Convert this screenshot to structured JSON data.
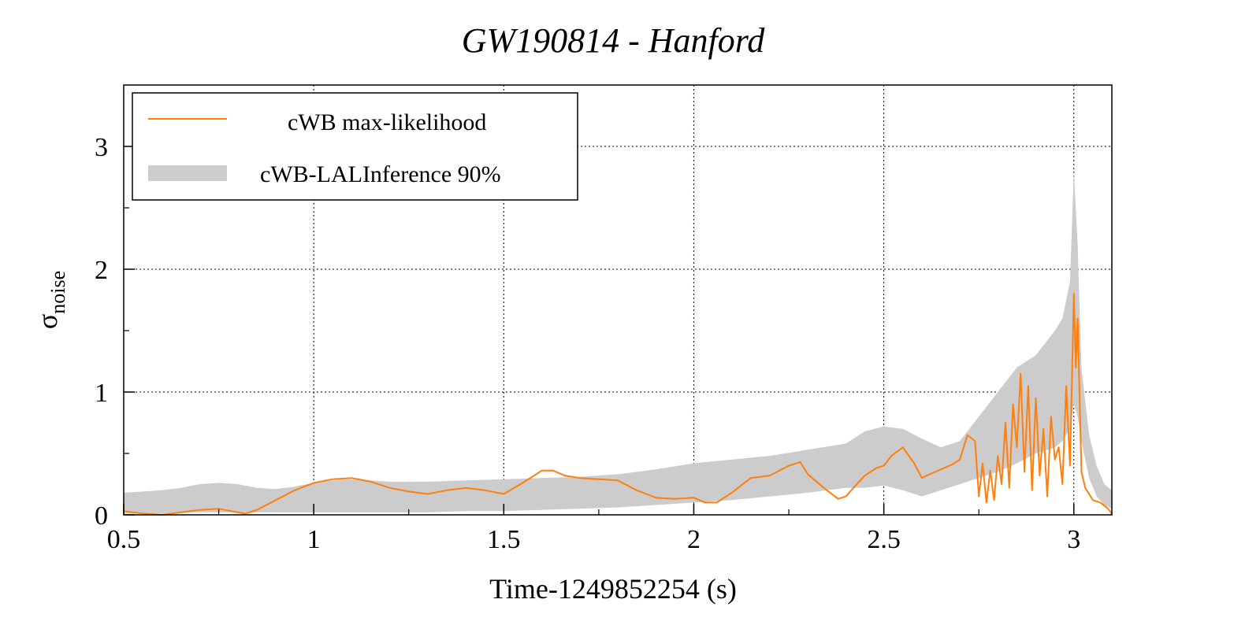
{
  "chart_data": {
    "type": "line",
    "title": "GW190814 - Hanford",
    "xlabel": "Time-1249852254 (s)",
    "ylabel_main": "σ",
    "ylabel_sub": "noise",
    "xlim": [
      0.5,
      3.1
    ],
    "ylim": [
      0,
      3.5
    ],
    "xticks": [
      0.5,
      1,
      1.5,
      2,
      2.5,
      3
    ],
    "xtick_labels": [
      "0.5",
      "1",
      "1.5",
      "2",
      "2.5",
      "3"
    ],
    "yticks": [
      0,
      1,
      2,
      3
    ],
    "ytick_labels": [
      "0",
      "1",
      "2",
      "3"
    ],
    "grid": true,
    "legend_position": "top-left",
    "colors": {
      "line": "#ff7f0e",
      "band": "#cccccc"
    },
    "series": [
      {
        "name": "cWB max-likelihood",
        "kind": "line",
        "x": [
          0.5,
          0.55,
          0.6,
          0.65,
          0.7,
          0.75,
          0.8,
          0.82,
          0.85,
          0.9,
          0.95,
          1.0,
          1.05,
          1.1,
          1.15,
          1.2,
          1.25,
          1.3,
          1.35,
          1.4,
          1.45,
          1.5,
          1.55,
          1.6,
          1.63,
          1.66,
          1.7,
          1.75,
          1.8,
          1.85,
          1.9,
          1.95,
          2.0,
          2.03,
          2.06,
          2.1,
          2.15,
          2.2,
          2.25,
          2.28,
          2.3,
          2.35,
          2.38,
          2.4,
          2.42,
          2.45,
          2.48,
          2.5,
          2.52,
          2.55,
          2.58,
          2.6,
          2.62,
          2.65,
          2.68,
          2.7,
          2.72,
          2.74,
          2.75,
          2.76,
          2.77,
          2.78,
          2.79,
          2.8,
          2.81,
          2.82,
          2.83,
          2.84,
          2.85,
          2.86,
          2.87,
          2.88,
          2.89,
          2.9,
          2.91,
          2.92,
          2.93,
          2.94,
          2.95,
          2.96,
          2.97,
          2.98,
          2.99,
          3.0,
          3.005,
          3.01,
          3.02,
          3.03,
          3.05,
          3.07,
          3.09,
          3.1
        ],
        "y": [
          0.03,
          0.01,
          0.0,
          0.02,
          0.04,
          0.05,
          0.02,
          0.01,
          0.04,
          0.12,
          0.2,
          0.26,
          0.29,
          0.3,
          0.27,
          0.22,
          0.19,
          0.17,
          0.2,
          0.22,
          0.2,
          0.17,
          0.26,
          0.36,
          0.36,
          0.32,
          0.3,
          0.29,
          0.28,
          0.2,
          0.14,
          0.13,
          0.14,
          0.1,
          0.1,
          0.18,
          0.3,
          0.32,
          0.4,
          0.43,
          0.33,
          0.2,
          0.13,
          0.15,
          0.22,
          0.32,
          0.38,
          0.4,
          0.48,
          0.55,
          0.42,
          0.3,
          0.33,
          0.37,
          0.41,
          0.45,
          0.65,
          0.6,
          0.15,
          0.42,
          0.1,
          0.36,
          0.12,
          0.48,
          0.25,
          0.75,
          0.22,
          0.9,
          0.55,
          1.15,
          0.35,
          1.05,
          0.2,
          0.95,
          0.32,
          0.7,
          0.15,
          0.8,
          0.45,
          0.55,
          0.25,
          1.05,
          0.4,
          1.8,
          1.2,
          1.6,
          0.35,
          0.22,
          0.12,
          0.1,
          0.05,
          0.01
        ]
      },
      {
        "name": "cWB-LALInference 90%",
        "kind": "band",
        "x": [
          0.5,
          0.55,
          0.6,
          0.65,
          0.7,
          0.75,
          0.8,
          0.85,
          0.9,
          0.95,
          1.0,
          1.05,
          1.1,
          1.15,
          1.2,
          1.3,
          1.4,
          1.5,
          1.6,
          1.7,
          1.8,
          1.9,
          2.0,
          2.1,
          2.2,
          2.3,
          2.4,
          2.45,
          2.5,
          2.55,
          2.6,
          2.65,
          2.7,
          2.75,
          2.8,
          2.85,
          2.9,
          2.95,
          2.97,
          2.99,
          3.0,
          3.01,
          3.02,
          3.04,
          3.06,
          3.08,
          3.1
        ],
        "lower": [
          0.01,
          0.01,
          0.01,
          0.02,
          0.02,
          0.02,
          0.02,
          0.02,
          0.02,
          0.02,
          0.02,
          0.02,
          0.02,
          0.02,
          0.02,
          0.02,
          0.03,
          0.03,
          0.04,
          0.05,
          0.06,
          0.08,
          0.1,
          0.12,
          0.15,
          0.18,
          0.22,
          0.22,
          0.24,
          0.2,
          0.15,
          0.2,
          0.25,
          0.3,
          0.35,
          0.42,
          0.5,
          0.55,
          0.6,
          0.7,
          0.9,
          0.8,
          0.6,
          0.3,
          0.15,
          0.08,
          0.05
        ],
        "upper": [
          0.18,
          0.19,
          0.2,
          0.22,
          0.25,
          0.26,
          0.25,
          0.22,
          0.21,
          0.23,
          0.26,
          0.28,
          0.29,
          0.28,
          0.27,
          0.27,
          0.28,
          0.29,
          0.3,
          0.31,
          0.33,
          0.37,
          0.42,
          0.45,
          0.48,
          0.53,
          0.58,
          0.68,
          0.72,
          0.7,
          0.62,
          0.55,
          0.6,
          0.8,
          1.0,
          1.2,
          1.3,
          1.5,
          1.6,
          1.9,
          2.8,
          2.2,
          1.2,
          0.65,
          0.4,
          0.25,
          0.2
        ]
      }
    ]
  }
}
